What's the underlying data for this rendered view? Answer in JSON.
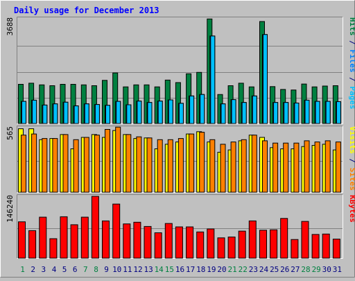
{
  "colors": {
    "background": "#c0c0c0",
    "panel": "#c0c0c0",
    "frame_dark": "#808080",
    "frame_light": "#ffffff",
    "gridline": "#808080",
    "title": "#0000ff",
    "hits": "#008040",
    "files": "#0080ff",
    "pages": "#00c0ff",
    "visits": "#ffff00",
    "sites": "#ff8000",
    "kbytes": "#ff0000",
    "weekday": "#000080",
    "weekend": "#008040",
    "bar_border": "#000000"
  },
  "chart_data": {
    "type": "bar",
    "title": "Daily usage for December 2013",
    "categories": [
      "1",
      "2",
      "3",
      "4",
      "5",
      "6",
      "7",
      "8",
      "9",
      "10",
      "11",
      "12",
      "13",
      "14",
      "15",
      "16",
      "17",
      "18",
      "19",
      "20",
      "21",
      "22",
      "23",
      "24",
      "25",
      "26",
      "27",
      "28",
      "29",
      "30",
      "31"
    ],
    "weekend_days": [
      "1",
      "7",
      "8",
      "14",
      "15",
      "21",
      "22",
      "28",
      "29"
    ],
    "panels": [
      {
        "id": "top",
        "max_label": "3688",
        "ylim": [
          0,
          3688
        ],
        "legend": [
          {
            "text": "Hits",
            "color_key": "hits"
          },
          {
            "text": " / ",
            "color_key": "weekday"
          },
          {
            "text": "Files",
            "color_key": "files"
          },
          {
            "text": " / ",
            "color_key": "weekday"
          },
          {
            "text": "Pages",
            "color_key": "pages"
          }
        ],
        "series": [
          {
            "name": "Hits",
            "color_key": "hits",
            "values": [
              1380,
              1420,
              1360,
              1330,
              1380,
              1380,
              1360,
              1330,
              1520,
              1780,
              1290,
              1360,
              1360,
              1290,
              1530,
              1440,
              1750,
              1800,
              3680,
              1020,
              1330,
              1420,
              1290,
              3590,
              1300,
              1200,
              1180,
              1390,
              1290,
              1320,
              1330
            ]
          },
          {
            "name": "Files",
            "color_key": "files",
            "values": [
              780,
              820,
              650,
              690,
              750,
              620,
              690,
              670,
              640,
              780,
              660,
              790,
              740,
              790,
              830,
              710,
              970,
              1020,
              3080,
              690,
              840,
              740,
              970,
              3130,
              740,
              740,
              720,
              820,
              780,
              780,
              770
            ]
          },
          {
            "name": "Pages",
            "color_key": "pages",
            "values": [
              780,
              820,
              650,
              690,
              750,
              620,
              690,
              670,
              640,
              780,
              660,
              790,
              740,
              790,
              830,
              710,
              970,
              1020,
              3080,
              690,
              840,
              740,
              970,
              3130,
              740,
              740,
              720,
              820,
              780,
              780,
              770
            ]
          }
        ]
      },
      {
        "id": "middle",
        "max_label": "565",
        "ylim": [
          0,
          565
        ],
        "legend": [
          {
            "text": "Visits",
            "color_key": "visits"
          },
          {
            "text": " / ",
            "color_key": "weekday"
          },
          {
            "text": "Sites",
            "color_key": "sites"
          }
        ],
        "series": [
          {
            "name": "Visits",
            "color_key": "visits",
            "values": [
              555,
              555,
              460,
              470,
              505,
              380,
              480,
              505,
              480,
              540,
              505,
              470,
              475,
              380,
              420,
              440,
              510,
              530,
              440,
              350,
              370,
              450,
              500,
              480,
              390,
              380,
              380,
              400,
              410,
              420,
              370
            ]
          },
          {
            "name": "Sites",
            "color_key": "sites",
            "values": [
              500,
              510,
              470,
              470,
              505,
              460,
              480,
              500,
              550,
              570,
              505,
              485,
              475,
              460,
              460,
              470,
              510,
              525,
              460,
              420,
              440,
              460,
              500,
              450,
              430,
              430,
              430,
              450,
              440,
              450,
              440
            ]
          }
        ]
      },
      {
        "id": "bottom",
        "max_label": "146240",
        "ylim": [
          0,
          146240
        ],
        "legend": [
          {
            "text": "KBytes",
            "color_key": "kbytes"
          }
        ],
        "series": [
          {
            "name": "KBytes",
            "color_key": "kbytes",
            "values": [
              86000,
              65000,
              97000,
              46000,
              98000,
              79000,
              97000,
              146240,
              88000,
              128000,
              81000,
              85000,
              75000,
              60000,
              82000,
              74000,
              74000,
              62000,
              69000,
              48000,
              50000,
              64000,
              88000,
              66000,
              67000,
              94000,
              44000,
              87000,
              56000,
              57000,
              45000
            ]
          }
        ]
      }
    ]
  }
}
